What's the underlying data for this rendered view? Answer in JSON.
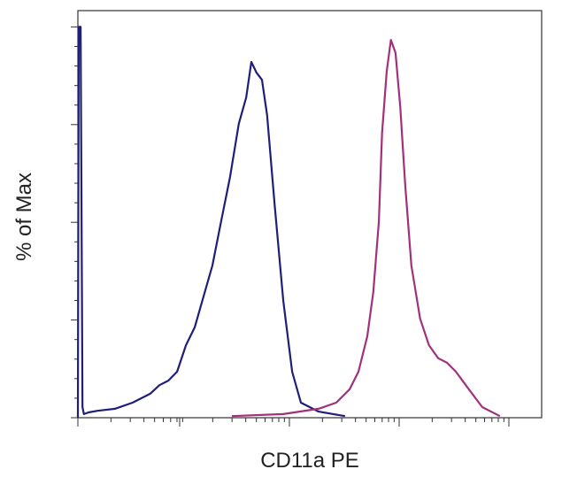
{
  "chart_data": {
    "type": "line",
    "x_label": "CD11a PE",
    "y_label": "% of Max",
    "xlim": [
      0,
      1000
    ],
    "ylim": [
      0,
      100
    ],
    "series": [
      {
        "color": "#1f1f7a",
        "x": [
          0,
          2,
          6,
          10,
          13,
          23,
          42,
          80,
          118,
          156,
          176,
          195,
          214,
          233,
          252,
          271,
          290,
          309,
          328,
          347,
          363,
          374,
          385,
          397,
          408,
          424,
          443,
          462,
          481,
          519,
          576
        ],
        "values": [
          0,
          96,
          96,
          2.6,
          0.9,
          1.3,
          1.7,
          2.2,
          3.7,
          5.9,
          8.0,
          9.1,
          11.3,
          17.8,
          22.2,
          29.8,
          37.4,
          48.3,
          59.1,
          72.2,
          78.7,
          87.4,
          84.8,
          83.0,
          74.3,
          52.6,
          28.7,
          11.3,
          3.7,
          1.5,
          0.4
        ]
      },
      {
        "color": "#a3307d",
        "x": [
          332,
          443,
          519,
          557,
          586,
          605,
          624,
          637,
          649,
          656,
          666,
          675,
          685,
          695,
          706,
          719,
          738,
          757,
          777,
          796,
          815,
          843,
          872,
          910
        ],
        "values": [
          0.4,
          0.9,
          2.2,
          3.7,
          7.0,
          11.3,
          20.0,
          30.9,
          48.3,
          70.0,
          85.2,
          92.8,
          89.6,
          76.5,
          57.0,
          37.4,
          24.3,
          17.8,
          14.6,
          13.5,
          11.3,
          7.0,
          2.6,
          0.4
        ]
      }
    ]
  }
}
